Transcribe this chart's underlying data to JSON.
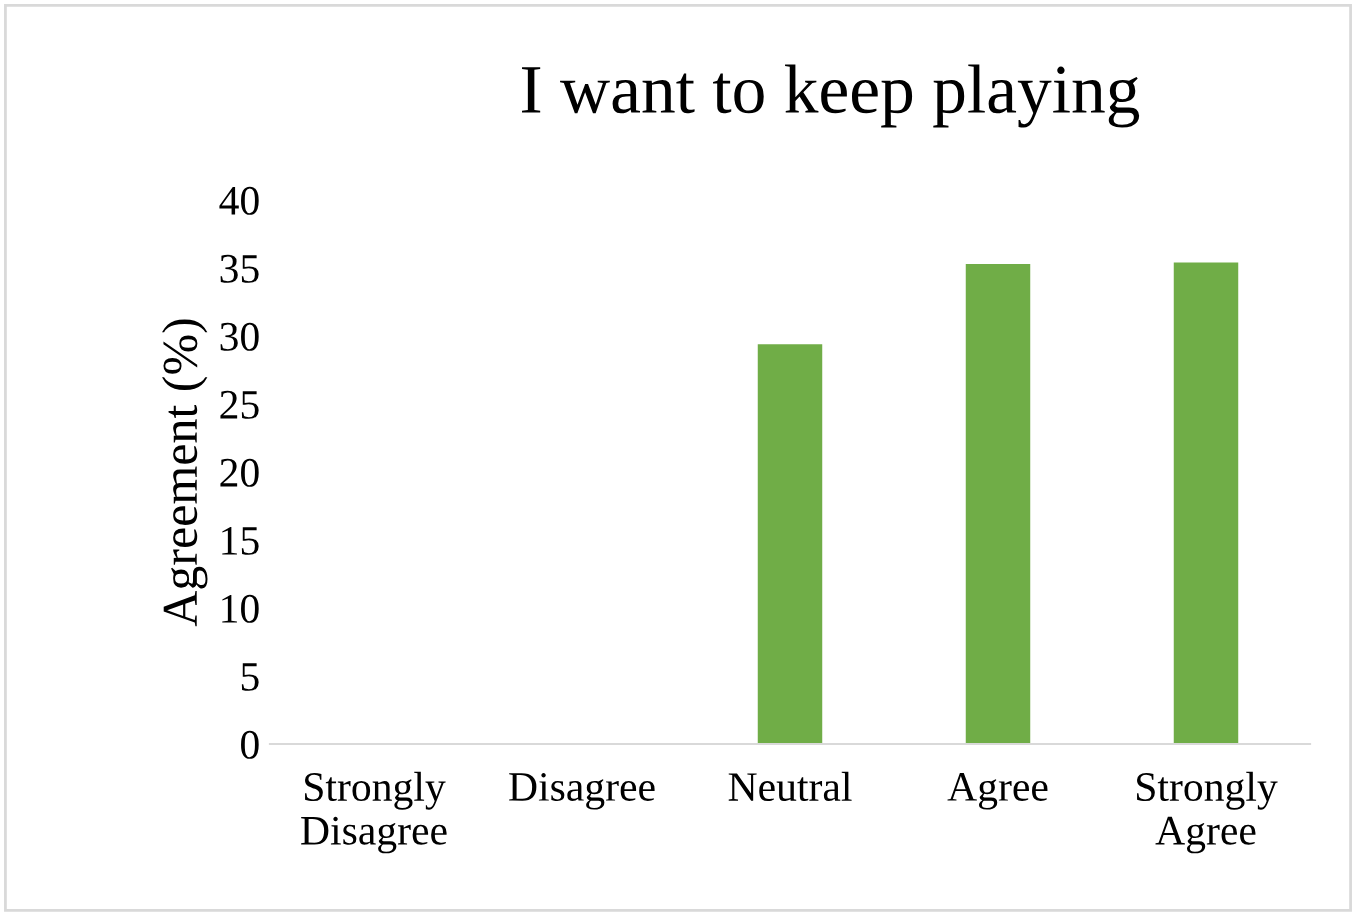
{
  "chart_data": {
    "type": "bar",
    "title": "I want to keep playing",
    "ylabel": "Agreement (%)",
    "categories": [
      "Strongly\nDisagree",
      "Disagree",
      "Neutral",
      "Agree",
      "Strongly\nAgree"
    ],
    "values": [
      0,
      0,
      29.4,
      35.3,
      35.4
    ],
    "color": "#70ad47",
    "ylim": [
      0,
      40
    ],
    "yticks": [
      0,
      5,
      10,
      15,
      20,
      25,
      30,
      35,
      40
    ],
    "grid": false
  }
}
